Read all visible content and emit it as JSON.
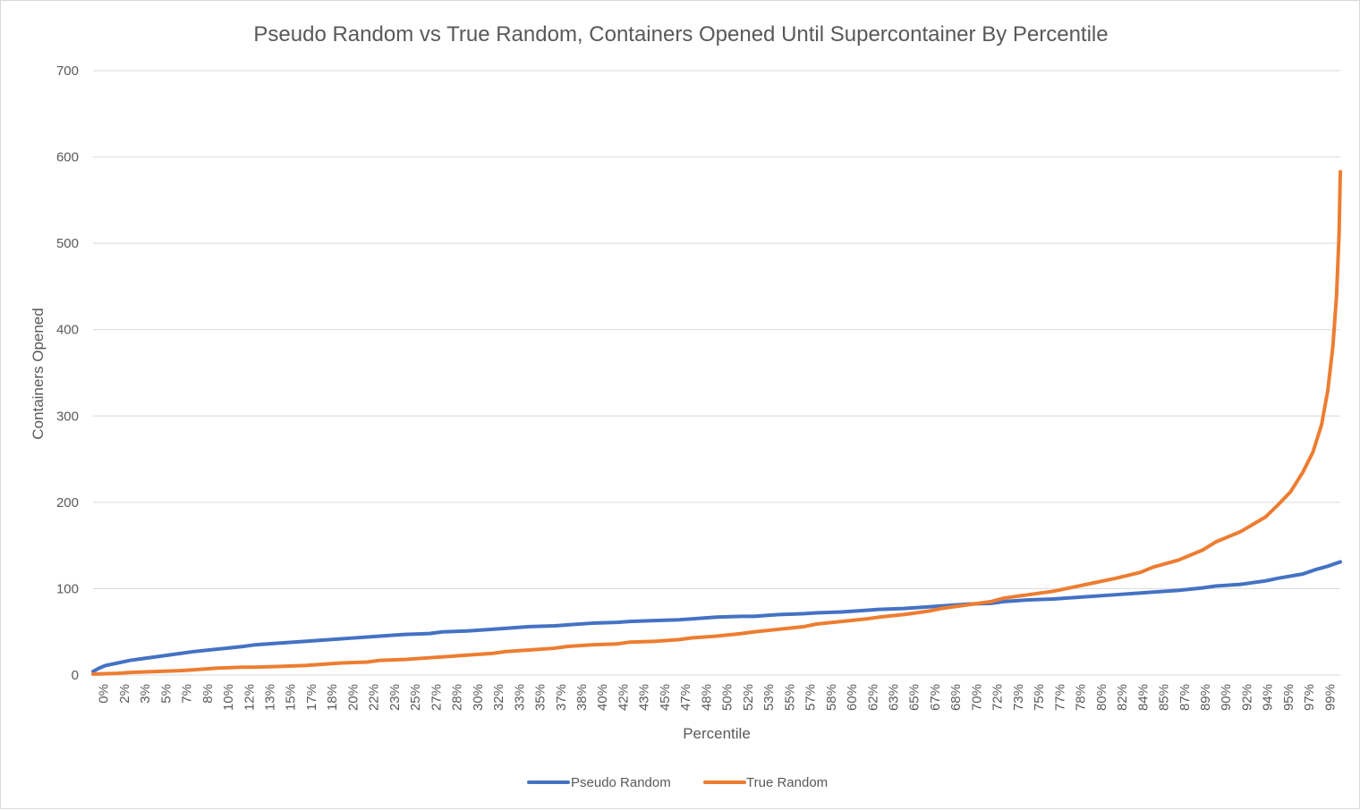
{
  "chart_data": {
    "type": "line",
    "title": "Pseudo Random vs True Random, Containers Opened Until Supercontainer By Percentile",
    "xlabel": "Percentile",
    "ylabel": "Containers Opened",
    "ylim": [
      0,
      700
    ],
    "yticks": [
      0,
      100,
      200,
      300,
      400,
      500,
      600,
      700
    ],
    "xlim": [
      0,
      100
    ],
    "grid": true,
    "legend_position": "bottom",
    "x_tick_labels": [
      "0%",
      "2%",
      "3%",
      "5%",
      "7%",
      "8%",
      "10%",
      "12%",
      "13%",
      "15%",
      "17%",
      "18%",
      "20%",
      "22%",
      "23%",
      "25%",
      "27%",
      "28%",
      "30%",
      "32%",
      "33%",
      "35%",
      "37%",
      "38%",
      "40%",
      "42%",
      "43%",
      "45%",
      "47%",
      "48%",
      "50%",
      "52%",
      "53%",
      "55%",
      "57%",
      "58%",
      "60%",
      "62%",
      "63%",
      "65%",
      "67%",
      "68%",
      "70%",
      "72%",
      "73%",
      "75%",
      "77%",
      "78%",
      "80%",
      "82%",
      "84%",
      "85%",
      "87%",
      "89%",
      "90%",
      "92%",
      "94%",
      "95%",
      "97%",
      "99%"
    ],
    "series": [
      {
        "name": "Pseudo Random",
        "color": "#4472C4",
        "points": [
          [
            0,
            4
          ],
          [
            0.5,
            8
          ],
          [
            1,
            11
          ],
          [
            2,
            14
          ],
          [
            3,
            17
          ],
          [
            4,
            19
          ],
          [
            5,
            21
          ],
          [
            7,
            25
          ],
          [
            8,
            27
          ],
          [
            10,
            30
          ],
          [
            12,
            33
          ],
          [
            13,
            35
          ],
          [
            15,
            37
          ],
          [
            17,
            39
          ],
          [
            18,
            40
          ],
          [
            20,
            42
          ],
          [
            22,
            44
          ],
          [
            23,
            45
          ],
          [
            25,
            47
          ],
          [
            27,
            48
          ],
          [
            28,
            50
          ],
          [
            30,
            51
          ],
          [
            32,
            53
          ],
          [
            33,
            54
          ],
          [
            35,
            56
          ],
          [
            37,
            57
          ],
          [
            38,
            58
          ],
          [
            40,
            60
          ],
          [
            42,
            61
          ],
          [
            43,
            62
          ],
          [
            45,
            63
          ],
          [
            47,
            64
          ],
          [
            48,
            65
          ],
          [
            50,
            67
          ],
          [
            52,
            68
          ],
          [
            53,
            68
          ],
          [
            55,
            70
          ],
          [
            57,
            71
          ],
          [
            58,
            72
          ],
          [
            60,
            73
          ],
          [
            62,
            75
          ],
          [
            63,
            76
          ],
          [
            65,
            77
          ],
          [
            67,
            79
          ],
          [
            68,
            80
          ],
          [
            70,
            82
          ],
          [
            72,
            83
          ],
          [
            73,
            85
          ],
          [
            75,
            87
          ],
          [
            77,
            88
          ],
          [
            78,
            89
          ],
          [
            80,
            91
          ],
          [
            82,
            93
          ],
          [
            84,
            95
          ],
          [
            85,
            96
          ],
          [
            87,
            98
          ],
          [
            89,
            101
          ],
          [
            90,
            103
          ],
          [
            92,
            105
          ],
          [
            94,
            109
          ],
          [
            95,
            112
          ],
          [
            97,
            117
          ],
          [
            98,
            122
          ],
          [
            99,
            126
          ],
          [
            99.6,
            129
          ],
          [
            100,
            131
          ]
        ]
      },
      {
        "name": "True Random",
        "color": "#ED7D31",
        "points": [
          [
            0,
            1
          ],
          [
            2,
            2
          ],
          [
            3,
            3
          ],
          [
            5,
            4
          ],
          [
            7,
            5
          ],
          [
            8,
            6
          ],
          [
            10,
            8
          ],
          [
            12,
            9
          ],
          [
            13,
            9
          ],
          [
            15,
            10
          ],
          [
            17,
            11
          ],
          [
            18,
            12
          ],
          [
            20,
            14
          ],
          [
            22,
            15
          ],
          [
            23,
            17
          ],
          [
            25,
            18
          ],
          [
            27,
            20
          ],
          [
            28,
            21
          ],
          [
            30,
            23
          ],
          [
            32,
            25
          ],
          [
            33,
            27
          ],
          [
            35,
            29
          ],
          [
            37,
            31
          ],
          [
            38,
            33
          ],
          [
            40,
            35
          ],
          [
            42,
            36
          ],
          [
            43,
            38
          ],
          [
            45,
            39
          ],
          [
            47,
            41
          ],
          [
            48,
            43
          ],
          [
            50,
            45
          ],
          [
            52,
            48
          ],
          [
            53,
            50
          ],
          [
            55,
            53
          ],
          [
            57,
            56
          ],
          [
            58,
            59
          ],
          [
            60,
            62
          ],
          [
            62,
            65
          ],
          [
            63,
            67
          ],
          [
            65,
            70
          ],
          [
            67,
            74
          ],
          [
            68,
            77
          ],
          [
            70,
            81
          ],
          [
            72,
            85
          ],
          [
            73,
            89
          ],
          [
            75,
            93
          ],
          [
            77,
            97
          ],
          [
            78,
            100
          ],
          [
            80,
            106
          ],
          [
            82,
            112
          ],
          [
            84,
            119
          ],
          [
            85,
            125
          ],
          [
            87,
            133
          ],
          [
            89,
            145
          ],
          [
            90,
            154
          ],
          [
            92,
            166
          ],
          [
            94,
            183
          ],
          [
            95,
            197
          ],
          [
            96,
            212
          ],
          [
            97,
            235
          ],
          [
            97.8,
            258
          ],
          [
            98.5,
            290
          ],
          [
            99,
            330
          ],
          [
            99.4,
            380
          ],
          [
            99.7,
            440
          ],
          [
            99.9,
            510
          ],
          [
            100,
            583
          ]
        ]
      }
    ]
  }
}
